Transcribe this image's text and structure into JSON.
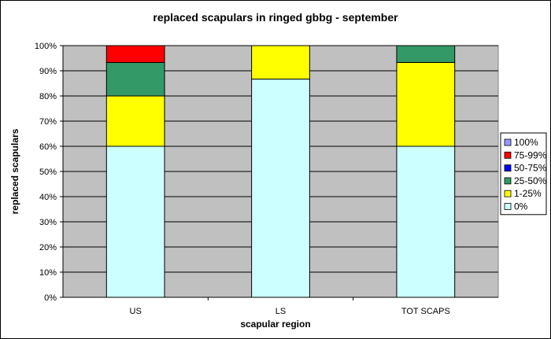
{
  "chart_data": {
    "type": "bar",
    "stacked": true,
    "percent_stacked": true,
    "title": "replaced scapulars in ringed gbbg - september",
    "xlabel": "scapular region",
    "ylabel": "replaced scapulars",
    "categories": [
      "US",
      "LS",
      "TOT SCAPS"
    ],
    "ylim": [
      0,
      100
    ],
    "yticks": [
      "0%",
      "10%",
      "20%",
      "30%",
      "40%",
      "50%",
      "60%",
      "70%",
      "80%",
      "90%",
      "100%"
    ],
    "grid": true,
    "plot_background": "#c0c0c0",
    "legend_position": "right",
    "series": [
      {
        "name": "0%",
        "color": "#ccffff",
        "values": [
          60,
          86.7,
          60
        ]
      },
      {
        "name": "1-25%",
        "color": "#ffff00",
        "values": [
          20,
          13.3,
          33.3
        ]
      },
      {
        "name": "25-50%",
        "color": "#339966",
        "values": [
          13.3,
          0,
          6.7
        ]
      },
      {
        "name": "50-75%",
        "color": "#0000ff",
        "values": [
          0,
          0,
          0
        ]
      },
      {
        "name": "75-99%",
        "color": "#ff0000",
        "values": [
          6.7,
          0,
          0
        ]
      },
      {
        "name": "100%",
        "color": "#9999ff",
        "values": [
          0,
          0,
          0
        ]
      }
    ]
  }
}
